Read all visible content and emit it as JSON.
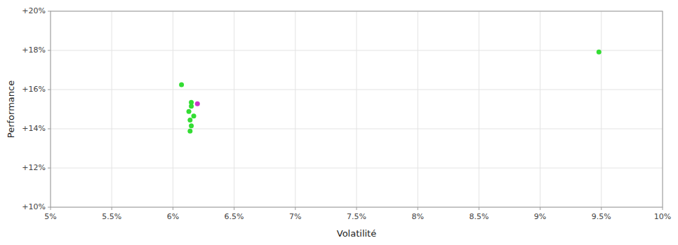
{
  "chart_data": {
    "type": "scatter",
    "x_label": "Volatilité",
    "y_label": "Performance",
    "xlim": [
      0.05,
      0.1
    ],
    "ylim": [
      0.1,
      0.2
    ],
    "xticks": [
      {
        "value": 0.05,
        "label": "5%"
      },
      {
        "value": 0.055,
        "label": "5.5%"
      },
      {
        "value": 0.06,
        "label": "6%"
      },
      {
        "value": 0.065,
        "label": "6.5%"
      },
      {
        "value": 0.07,
        "label": "7%"
      },
      {
        "value": 0.075,
        "label": "7.5%"
      },
      {
        "value": 0.08,
        "label": "8%"
      },
      {
        "value": 0.085,
        "label": "8.5%"
      },
      {
        "value": 0.09,
        "label": "9%"
      },
      {
        "value": 0.095,
        "label": "9.5%"
      },
      {
        "value": 0.1,
        "label": "10%"
      }
    ],
    "yticks": [
      {
        "value": 0.1,
        "label": "+10%"
      },
      {
        "value": 0.12,
        "label": "+12%"
      },
      {
        "value": 0.14,
        "label": "+14%"
      },
      {
        "value": 0.16,
        "label": "+16%"
      },
      {
        "value": 0.18,
        "label": "+18%"
      },
      {
        "value": 0.2,
        "label": "+20%"
      }
    ],
    "grid": true,
    "series": [
      {
        "color": "#33dd33",
        "x": [
          0.0607,
          0.0615,
          0.0615,
          0.0613,
          0.0617,
          0.0614,
          0.0615,
          0.0614,
          0.0948
        ],
        "values": [
          0.1625,
          0.1535,
          0.1515,
          0.1488,
          0.1465,
          0.1445,
          0.1415,
          0.1388,
          0.1792
        ]
      },
      {
        "color": "#cc33cc",
        "x": [
          0.062
        ],
        "values": [
          0.1528
        ]
      }
    ]
  }
}
